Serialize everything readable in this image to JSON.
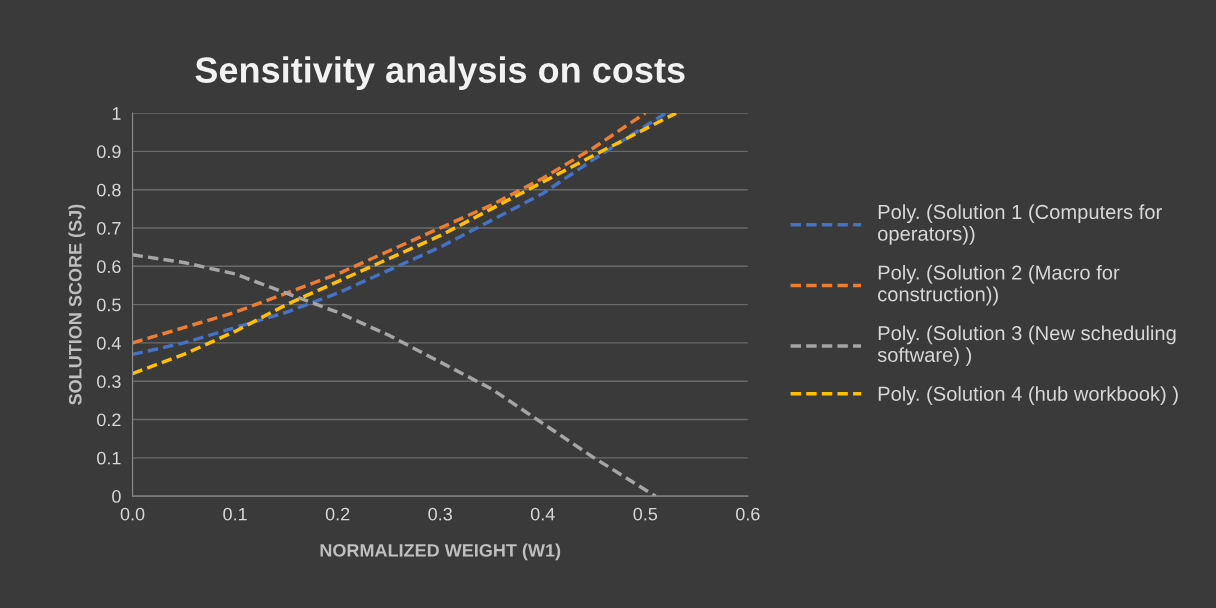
{
  "chart_data": {
    "type": "line",
    "title": "Sensitivity analysis on costs",
    "xlabel": "NORMALIZED WEIGHT (W1)",
    "ylabel": "SOLUTION SCORE (SJ)",
    "xlim": [
      0,
      0.6
    ],
    "xticks": [
      {
        "value": 0,
        "label": "0.0"
      },
      0.1,
      0.2,
      0.3,
      0.4,
      0.5,
      0.6
    ],
    "ylim": [
      0,
      1
    ],
    "yticks": [
      0,
      0.1,
      0.2,
      0.3,
      0.4,
      0.5,
      0.6,
      0.7,
      0.8,
      0.9,
      1
    ],
    "grid": "y",
    "legend": "right",
    "line_style": "dashed",
    "marker": "none",
    "series": [
      {
        "name": "Poly. (Solution 1 (Computers for operators))",
        "color": "#4472c4",
        "x": [
          0,
          0.05,
          0.1,
          0.15,
          0.2,
          0.25,
          0.3,
          0.35,
          0.4,
          0.45,
          0.52
        ],
        "values": [
          0.37,
          0.4,
          0.44,
          0.48,
          0.53,
          0.59,
          0.65,
          0.72,
          0.79,
          0.88,
          1.0
        ]
      },
      {
        "name": "Poly. (Solution 2 (Macro for construction))",
        "color": "#ed7d31",
        "x": [
          0,
          0.05,
          0.1,
          0.15,
          0.2,
          0.25,
          0.3,
          0.35,
          0.4,
          0.45,
          0.5
        ],
        "values": [
          0.4,
          0.44,
          0.48,
          0.53,
          0.58,
          0.64,
          0.7,
          0.76,
          0.83,
          0.91,
          1.0
        ]
      },
      {
        "name": "Poly. (Solution 3 (New scheduling software) )",
        "color": "#a5a5a5",
        "x": [
          0,
          0.05,
          0.1,
          0.15,
          0.2,
          0.25,
          0.3,
          0.35,
          0.4,
          0.45,
          0.51
        ],
        "values": [
          0.63,
          0.61,
          0.58,
          0.53,
          0.48,
          0.42,
          0.35,
          0.28,
          0.19,
          0.1,
          0.0
        ]
      },
      {
        "name": "Poly. (Solution 4 (hub workbook) )",
        "color": "#ffc000",
        "x": [
          0,
          0.05,
          0.1,
          0.15,
          0.2,
          0.25,
          0.3,
          0.35,
          0.4,
          0.45,
          0.53
        ],
        "values": [
          0.32,
          0.37,
          0.43,
          0.5,
          0.56,
          0.62,
          0.68,
          0.75,
          0.82,
          0.89,
          1.0
        ]
      }
    ]
  }
}
